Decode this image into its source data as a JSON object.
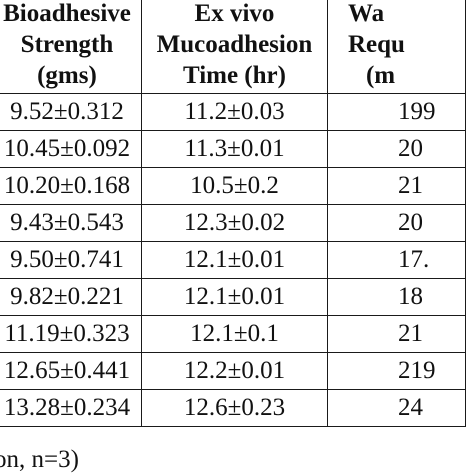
{
  "table": {
    "headers": [
      [
        "Bioadhesive",
        "Strength",
        "(gms)"
      ],
      [
        "Ex vivo",
        "Mucoadhesion",
        "Time (hr)"
      ],
      [
        "Wa",
        "Requ",
        "(m"
      ]
    ],
    "rows": [
      [
        "9.52±0.312",
        "11.2±0.03",
        "199"
      ],
      [
        "10.45±0.092",
        "11.3±0.01",
        "20"
      ],
      [
        "10.20±0.168",
        "10.5±0.2",
        "21"
      ],
      [
        "9.43±0.543",
        "12.3±0.02",
        "20"
      ],
      [
        "9.50±0.741",
        "12.1±0.01",
        "17."
      ],
      [
        "9.82±0.221",
        "12.1±0.01",
        "18"
      ],
      [
        "11.19±0.323",
        "12.1±0.1",
        "21"
      ],
      [
        "12.65±0.441",
        "12.2±0.01",
        "219"
      ],
      [
        "13.28±0.234",
        "12.6±0.23",
        "24"
      ]
    ]
  },
  "footnote": "on, n=3)"
}
